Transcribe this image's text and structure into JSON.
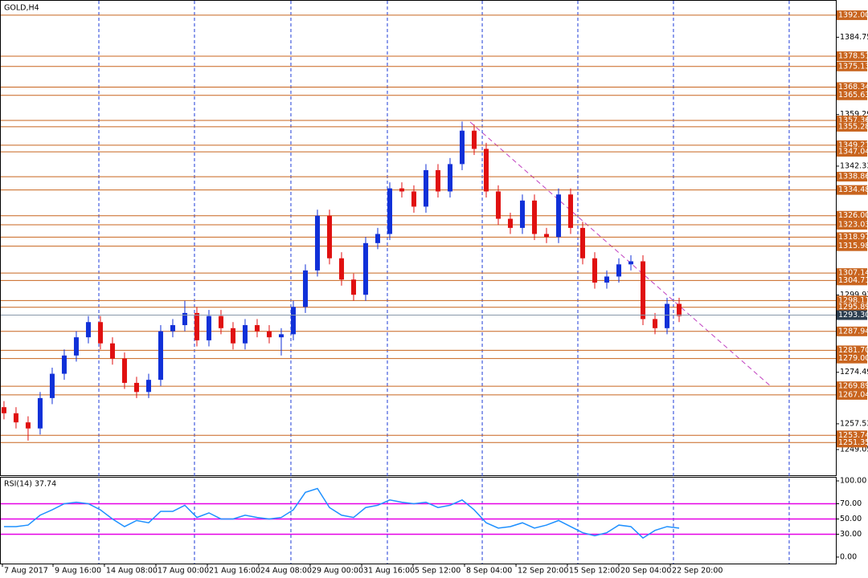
{
  "chart_data": [
    {
      "type": "candlestick",
      "title": "GOLD,H4",
      "open": [
        1263,
        1261,
        1258,
        1256,
        1266,
        1274,
        1280,
        1286,
        1291,
        1284,
        1279,
        1271,
        1268,
        1272,
        1288,
        1290,
        1294,
        1285,
        1293,
        1289,
        1284,
        1290,
        1288,
        1286,
        1287,
        1296,
        1308,
        1326,
        1312,
        1305,
        1300,
        1317,
        1320,
        1335,
        1334,
        1329,
        1341,
        1334,
        1343,
        1354,
        1348,
        1334,
        1325,
        1322,
        1331,
        1320,
        1319,
        1333,
        1322,
        1312,
        1304,
        1306,
        1310,
        1311,
        1292,
        1289,
        1297
      ],
      "high": [
        1265,
        1263,
        1260,
        1268,
        1276,
        1282,
        1288,
        1293,
        1293,
        1286,
        1281,
        1273,
        1274,
        1290,
        1292,
        1298,
        1296,
        1295,
        1295,
        1291,
        1292,
        1292,
        1290,
        1289,
        1298,
        1310,
        1328,
        1328,
        1314,
        1307,
        1319,
        1322,
        1337,
        1337,
        1336,
        1343,
        1343,
        1345,
        1357,
        1356,
        1350,
        1336,
        1327,
        1333,
        1333,
        1322,
        1335,
        1335,
        1324,
        1314,
        1308,
        1312,
        1313,
        1313,
        1294,
        1299,
        1299
      ],
      "low": [
        1259,
        1256,
        1252,
        1254,
        1264,
        1272,
        1278,
        1284,
        1282,
        1277,
        1269,
        1266,
        1266,
        1270,
        1286,
        1288,
        1283,
        1283,
        1287,
        1282,
        1282,
        1286,
        1284,
        1280,
        1285,
        1294,
        1306,
        1310,
        1303,
        1298,
        1298,
        1315,
        1318,
        1332,
        1327,
        1327,
        1332,
        1332,
        1341,
        1346,
        1332,
        1323,
        1320,
        1320,
        1318,
        1317,
        1317,
        1320,
        1310,
        1302,
        1302,
        1304,
        1308,
        1290,
        1287,
        1287,
        1291
      ],
      "close": [
        1261,
        1258,
        1256,
        1266,
        1274,
        1280,
        1286,
        1291,
        1284,
        1279,
        1271,
        1268,
        1272,
        1288,
        1290,
        1294,
        1285,
        1293,
        1289,
        1284,
        1290,
        1288,
        1286,
        1287,
        1296,
        1308,
        1326,
        1312,
        1305,
        1300,
        1317,
        1320,
        1335,
        1334,
        1329,
        1341,
        1334,
        1343,
        1354,
        1348,
        1334,
        1325,
        1322,
        1331,
        1320,
        1319,
        1333,
        1322,
        1312,
        1304,
        1306,
        1310,
        1311,
        1292,
        1289,
        1297,
        1293
      ],
      "up_color": "#1030d8",
      "down_color": "#e01010",
      "xlim": [
        -0.33,
        69
      ],
      "xticks": [
        {
          "value": -0.13,
          "label": "7 Aug 2017"
        },
        {
          "value": 4.07,
          "label": "9 Aug 16:00"
        },
        {
          "value": 8.33,
          "label": "14 Aug 08:00"
        },
        {
          "value": 12.6,
          "label": "17 Aug 00:00"
        },
        {
          "value": 16.87,
          "label": "21 Aug 16:00"
        },
        {
          "value": 21.13,
          "label": "24 Aug 08:00"
        },
        {
          "value": 25.4,
          "label": "29 Aug 00:00"
        },
        {
          "value": 29.67,
          "label": "31 Aug 16:00"
        },
        {
          "value": 33.93,
          "label": "5 Sep 12:00"
        },
        {
          "value": 38.2,
          "label": "8 Sep 04:00"
        },
        {
          "value": 42.47,
          "label": "12 Sep 20:00"
        },
        {
          "value": 46.73,
          "label": "15 Sep 12:00"
        },
        {
          "value": 51.0,
          "label": "20 Sep 04:00"
        },
        {
          "value": 55.27,
          "label": "22 Sep 20:00"
        }
      ],
      "xgrid": [
        7.87,
        15.8,
        23.8,
        31.8,
        39.67,
        47.6,
        55.53,
        65.13
      ],
      "ylim": [
        1240.6,
        1397.0
      ],
      "yticks": [
        1384.75,
        1359.29,
        1342.33,
        1299.93,
        1274.49,
        1257.53,
        1249.05
      ],
      "level_color": "#c8641e",
      "levels": [
        {
          "value": 1392,
          "label": "1392.00"
        },
        {
          "value": 1378.51,
          "label": "1378.51"
        },
        {
          "value": 1375.13,
          "label": "1375.13"
        },
        {
          "value": 1368.34,
          "label": "1368.34"
        },
        {
          "value": 1365.63,
          "label": "1365.63"
        },
        {
          "value": 1357.36,
          "label": "1357.36"
        },
        {
          "value": 1355.28,
          "label": "1355.28"
        },
        {
          "value": 1349.21,
          "label": "1349.21"
        },
        {
          "value": 1347.04,
          "label": "1347.04"
        },
        {
          "value": 1338.86,
          "label": "1338.86"
        },
        {
          "value": 1334.48,
          "label": "1334.48"
        },
        {
          "value": 1326,
          "label": "1326.00"
        },
        {
          "value": 1323.03,
          "label": "1323.03"
        },
        {
          "value": 1318.97,
          "label": "1318.97"
        },
        {
          "value": 1315.98,
          "label": "1315.98"
        },
        {
          "value": 1307.14,
          "label": "1307.14"
        },
        {
          "value": 1304.71,
          "label": "1304.71"
        },
        {
          "value": 1298.11,
          "label": "1298.11"
        },
        {
          "value": 1295.89,
          "label": "1295.89"
        },
        {
          "value": 1287.94,
          "label": "1287.94"
        },
        {
          "value": 1281.7,
          "label": "1281.70"
        },
        {
          "value": 1279,
          "label": "1279.00"
        },
        {
          "value": 1269.89,
          "label": "1269.89"
        },
        {
          "value": 1267.04,
          "label": "1267.04"
        },
        {
          "value": 1253.74,
          "label": "1253.74"
        },
        {
          "value": 1251.35,
          "label": "1251.35"
        }
      ],
      "current_price": {
        "value": 1293.3,
        "label": "1293.30"
      }
    },
    {
      "type": "line",
      "title": "RSI(14) 37.74",
      "color": "#1e90ff",
      "values": [
        40,
        40,
        42,
        55,
        62,
        70,
        72,
        70,
        62,
        50,
        40,
        48,
        45,
        60,
        60,
        68,
        52,
        58,
        50,
        50,
        55,
        52,
        50,
        52,
        62,
        85,
        90,
        65,
        55,
        52,
        65,
        68,
        75,
        72,
        70,
        72,
        65,
        68,
        75,
        62,
        45,
        38,
        40,
        45,
        38,
        42,
        48,
        40,
        32,
        28,
        32,
        42,
        40,
        25,
        35,
        40,
        38
      ],
      "ylim": [
        -8.5,
        105.3
      ],
      "yticks": [
        {
          "value": 100,
          "label": "100.00"
        },
        {
          "value": 70,
          "label": "70.00"
        },
        {
          "value": 50,
          "label": "50.00"
        },
        {
          "value": 30,
          "label": "30.00"
        },
        {
          "value": 0,
          "label": "0.00"
        }
      ],
      "hlines": [
        70,
        50,
        30
      ],
      "hline_color": "#e600e6"
    }
  ]
}
